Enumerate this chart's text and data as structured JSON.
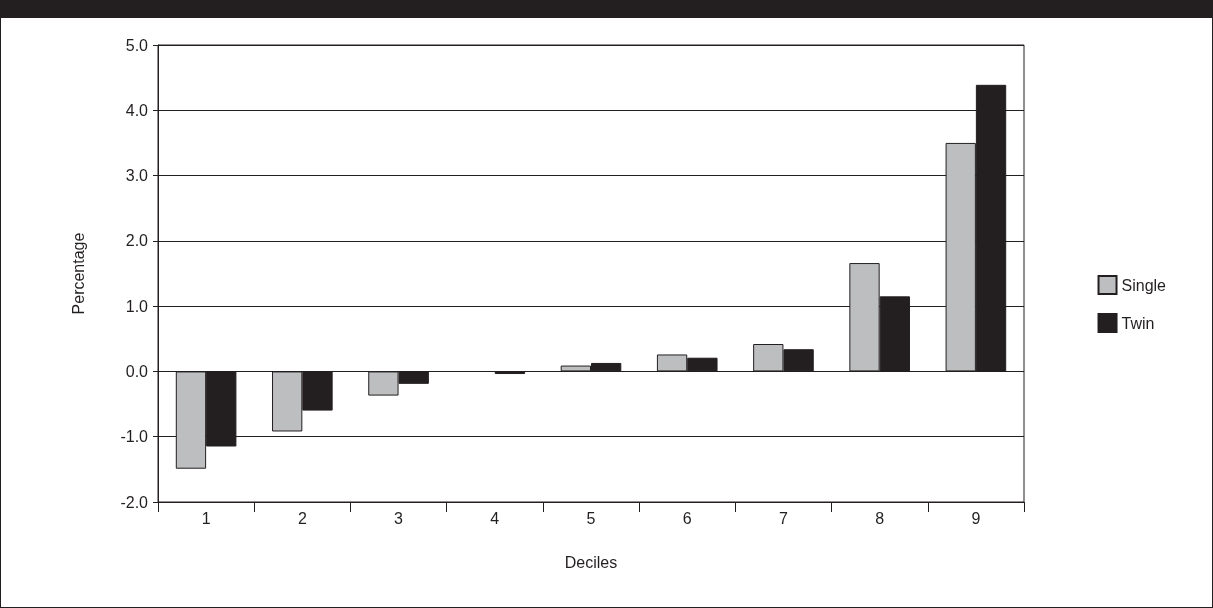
{
  "chart_data": {
    "type": "bar",
    "xlabel": "Deciles",
    "ylabel": "Percentage",
    "categories": [
      "1",
      "2",
      "3",
      "4",
      "5",
      "6",
      "7",
      "8",
      "9"
    ],
    "series": [
      {
        "name": "Single",
        "color": "#bdbec0",
        "values": [
          -1.49,
          -0.92,
          -0.37,
          0,
          0.09,
          0.26,
          0.42,
          1.66,
          3.5
        ]
      },
      {
        "name": "Twin",
        "color": "#231f20",
        "values": [
          -1.15,
          -0.6,
          -0.19,
          -0.04,
          0.13,
          0.21,
          0.34,
          1.15,
          4.39
        ]
      }
    ],
    "ylim": [
      -2,
      5
    ],
    "yticks": [
      {
        "value": -2,
        "label": "-2.0"
      },
      {
        "value": -1,
        "label": "-1.0"
      },
      {
        "value": 0,
        "label": "0.0"
      },
      {
        "value": 1,
        "label": "1.0"
      },
      {
        "value": 2,
        "label": "2.0"
      },
      {
        "value": 3,
        "label": "3.0"
      },
      {
        "value": 4,
        "label": "4.0"
      },
      {
        "value": 5,
        "label": "5.0"
      }
    ],
    "grid": "y",
    "legend": "right"
  }
}
